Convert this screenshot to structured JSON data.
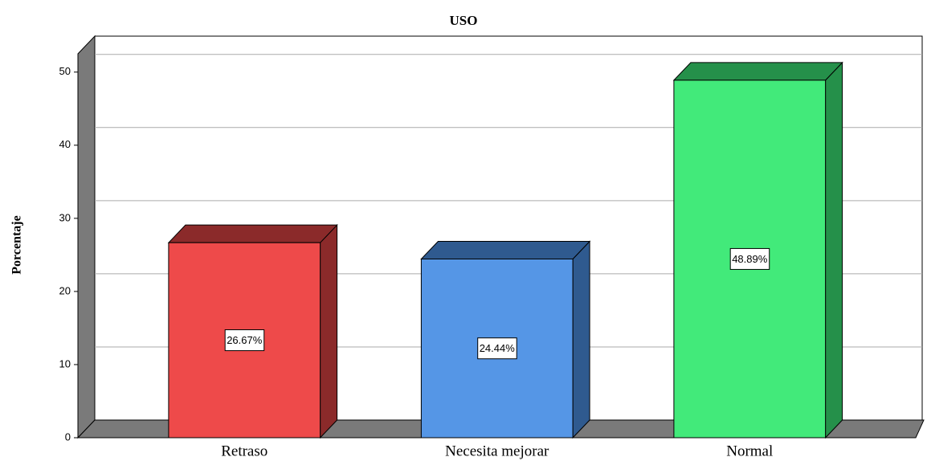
{
  "chart_data": {
    "type": "bar3d",
    "title": "USO",
    "y_label": "Porcentaje",
    "categories": [
      "Retraso",
      "Necesita mejorar",
      "Normal"
    ],
    "values": [
      26.67,
      24.44,
      48.89
    ],
    "value_labels": [
      "26.67%",
      "24.44%",
      "48.89%"
    ],
    "colors": [
      "#ee4a4a",
      "#5596e6",
      "#42ea7a"
    ],
    "side_colors": [
      "#8b2a2a",
      "#2f5a8f",
      "#25904a"
    ],
    "ylim": [
      0,
      52.5
    ],
    "yticks": [
      0,
      10,
      20,
      30,
      40,
      50
    ],
    "grid": true
  }
}
